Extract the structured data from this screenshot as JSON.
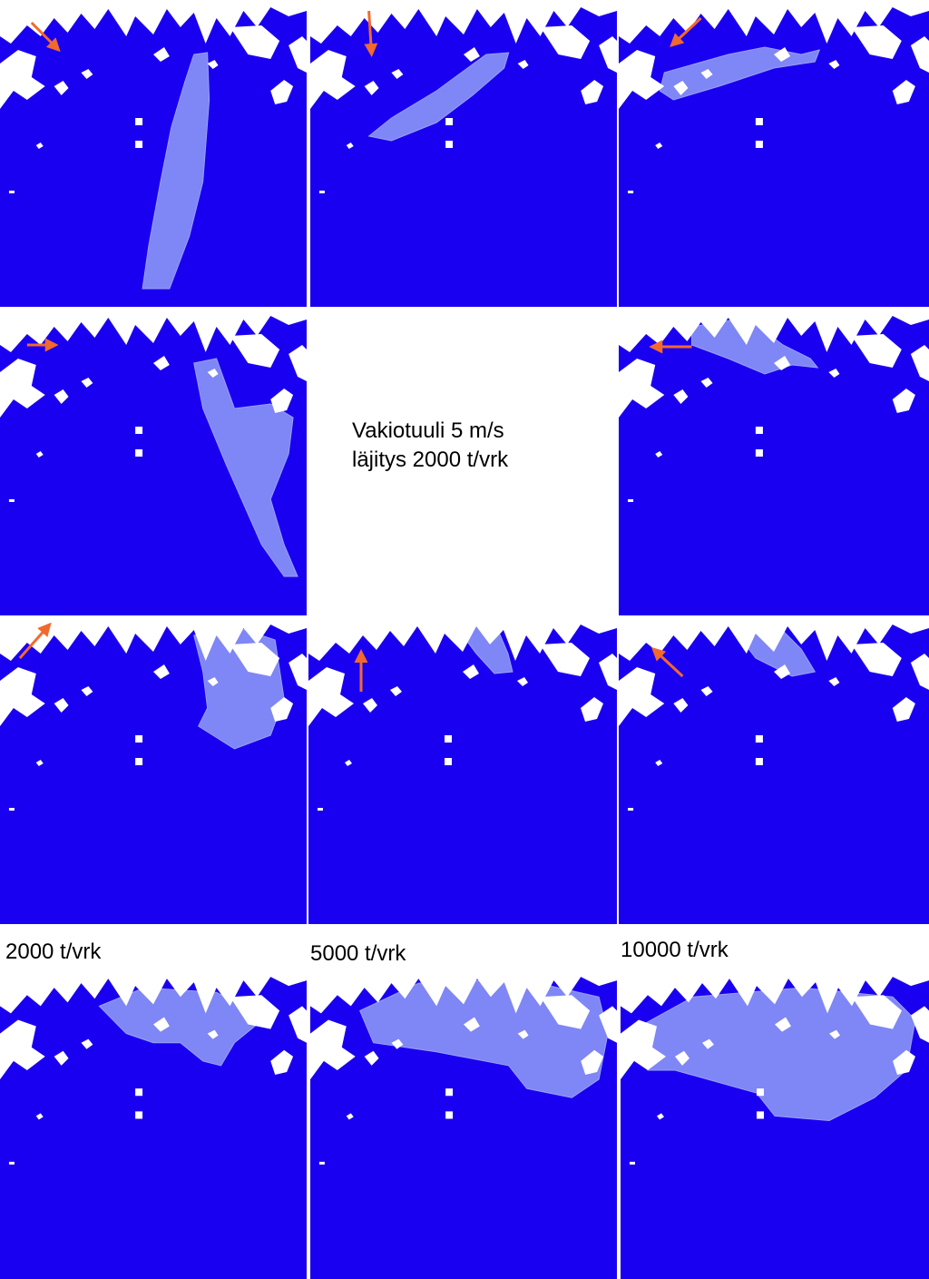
{
  "caption": {
    "line1": "Vakiotuuli 5 m/s",
    "line2": "läjitys 2000 t/vrk"
  },
  "row_labels": [
    "2000 t/vrk",
    "5000 t/vrk",
    "10000 t/vrk"
  ]
}
